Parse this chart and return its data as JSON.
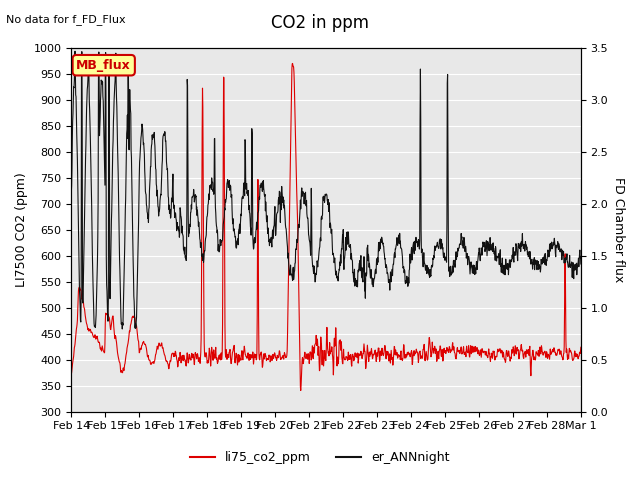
{
  "title": "CO2 in ppm",
  "top_left_text": "No data for f_FD_Flux",
  "ylabel_left": "LI7500 CO2 (ppm)",
  "ylabel_right": "FD Chamber flux",
  "ylim_left": [
    300,
    1000
  ],
  "ylim_right": [
    0.0,
    3.5
  ],
  "yticks_left": [
    300,
    350,
    400,
    450,
    500,
    550,
    600,
    650,
    700,
    750,
    800,
    850,
    900,
    950,
    1000
  ],
  "yticks_right": [
    0.0,
    0.5,
    1.0,
    1.5,
    2.0,
    2.5,
    3.0,
    3.5
  ],
  "xlabel_ticks": [
    "Feb 14",
    "Feb 15",
    "Feb 16",
    "Feb 17",
    "Feb 18",
    "Feb 19",
    "Feb 20",
    "Feb 21",
    "Feb 22",
    "Feb 23",
    "Feb 24",
    "Feb 25",
    "Feb 26",
    "Feb 27",
    "Feb 28",
    "Mar 1"
  ],
  "legend_label_red": "li75_co2_ppm",
  "legend_label_black": "er_ANNnight",
  "mb_flux_label": "MB_flux",
  "bg_color": "#e8e8e8",
  "line_color_red": "#dd0000",
  "line_color_black": "#111111",
  "fig_bg": "#ffffff"
}
